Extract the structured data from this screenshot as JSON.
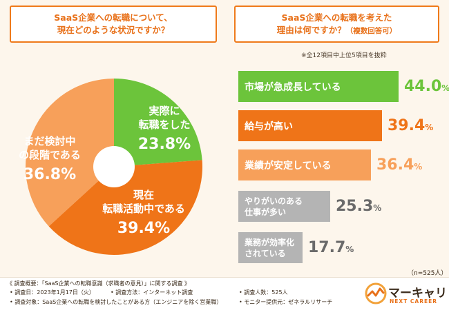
{
  "left_title": {
    "line1": "SaaS企業への転職について、",
    "line2": "現在どのような状況ですか？"
  },
  "right_title": {
    "line1": "SaaS企業への転職を考えた",
    "line2": "理由は何ですか？",
    "line2_small": "（複数回答可）"
  },
  "note": "※全12項目中上位5項目を抜粋",
  "n_note": "（n=525人）",
  "colors": {
    "green": "#6cc43b",
    "orange": "#ef7418",
    "light_orange": "#f7a05a",
    "gray": "#b4b4b4"
  },
  "chart_data": [
    {
      "type": "pie",
      "title": "SaaS企業への転職について、現在どのような状況ですか？",
      "donut": true,
      "slices": [
        {
          "line1": "実際に",
          "line2": "転職をした",
          "value": 23.8,
          "value_label": "23.8%",
          "color": "#6cc43b"
        },
        {
          "line1": "現在",
          "line2": "転職活動中である",
          "value": 39.4,
          "value_label": "39.4%",
          "color": "#ef7418"
        },
        {
          "line1": "まだ検討中",
          "line2": "の段階である",
          "value": 36.8,
          "value_label": "36.8%",
          "color": "#f7a05a"
        }
      ]
    },
    {
      "type": "bar",
      "title": "SaaS企業への転職を考えた理由は何ですか？（複数回答可）",
      "orientation": "horizontal",
      "xlim": [
        0,
        55
      ],
      "bars": [
        {
          "line1": "市場が急成長している",
          "line2": "",
          "value": 44.0,
          "num": "44.0",
          "unit": "%",
          "color": "#6cc43b"
        },
        {
          "line1": "給与が高い",
          "line2": "",
          "value": 39.4,
          "num": "39.4",
          "unit": "%",
          "color": "#ef7418"
        },
        {
          "line1": "業績が安定している",
          "line2": "",
          "value": 36.4,
          "num": "36.4",
          "unit": "%",
          "color": "#f7a05a"
        },
        {
          "line1": "やりがいのある",
          "line2": "仕事が多い",
          "value": 25.3,
          "num": "25.3",
          "unit": "%",
          "color": "#b4b4b4"
        },
        {
          "line1": "業務が効率化",
          "line2": "されている",
          "value": 17.7,
          "num": "17.7",
          "unit": "%",
          "color": "#b4b4b4"
        }
      ]
    }
  ],
  "footer": {
    "overview": "《 調査概要：「SaaS企業への転職意識（求職者の意見）」に関する調査 》",
    "date": "• 調査日：2023年1月17日（火）",
    "method": "• 調査方法：インターネット調査",
    "target": "• 調査対象：SaaS企業への転職を検討したことがある方（エンジニアを除く営業職）",
    "count": "• 調査人数：525人",
    "provider": "• モニター提供元：ゼネラルリサーチ"
  },
  "logo": {
    "name": "マーキャリ",
    "sub": "NEXT CAREER"
  }
}
